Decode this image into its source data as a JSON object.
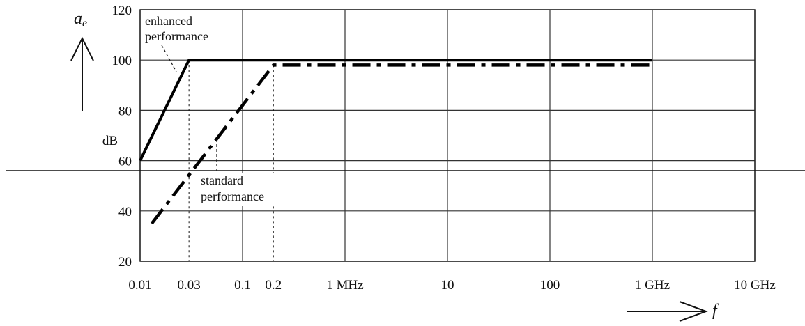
{
  "chart_data": {
    "type": "line",
    "xscale": "log",
    "xlim": [
      0.01,
      10000
    ],
    "ylim": [
      20,
      120
    ],
    "grid": true,
    "y_ticks": [
      20,
      40,
      60,
      80,
      100,
      120
    ],
    "x_ticks": [
      {
        "value": 0.01,
        "label": "0.01"
      },
      {
        "value": 0.03,
        "label": "0.03"
      },
      {
        "value": 0.1,
        "label": "0.1"
      },
      {
        "value": 0.2,
        "label": "0.2"
      },
      {
        "value": 1,
        "label": "1 MHz"
      },
      {
        "value": 10,
        "label": "10"
      },
      {
        "value": 100,
        "label": "100"
      },
      {
        "value": 1000,
        "label": "1 GHz"
      },
      {
        "value": 10000,
        "label": "10 GHz"
      }
    ],
    "ylabel_symbol": "a",
    "ylabel_subscript": "e",
    "yunit": "dB",
    "xlabel_symbol": "f",
    "series": [
      {
        "name": "enhanced performance",
        "style": "solid",
        "x": [
          0.01,
          0.03,
          1000
        ],
        "y": [
          60,
          100,
          100
        ]
      },
      {
        "name": "standard performance",
        "style": "dashdot",
        "x": [
          0.013,
          0.2,
          1000
        ],
        "y": [
          35,
          98,
          98
        ]
      }
    ],
    "annotations": [
      {
        "lines": [
          "enhanced",
          "performance"
        ]
      },
      {
        "lines": [
          "standard",
          "performance"
        ]
      }
    ]
  }
}
